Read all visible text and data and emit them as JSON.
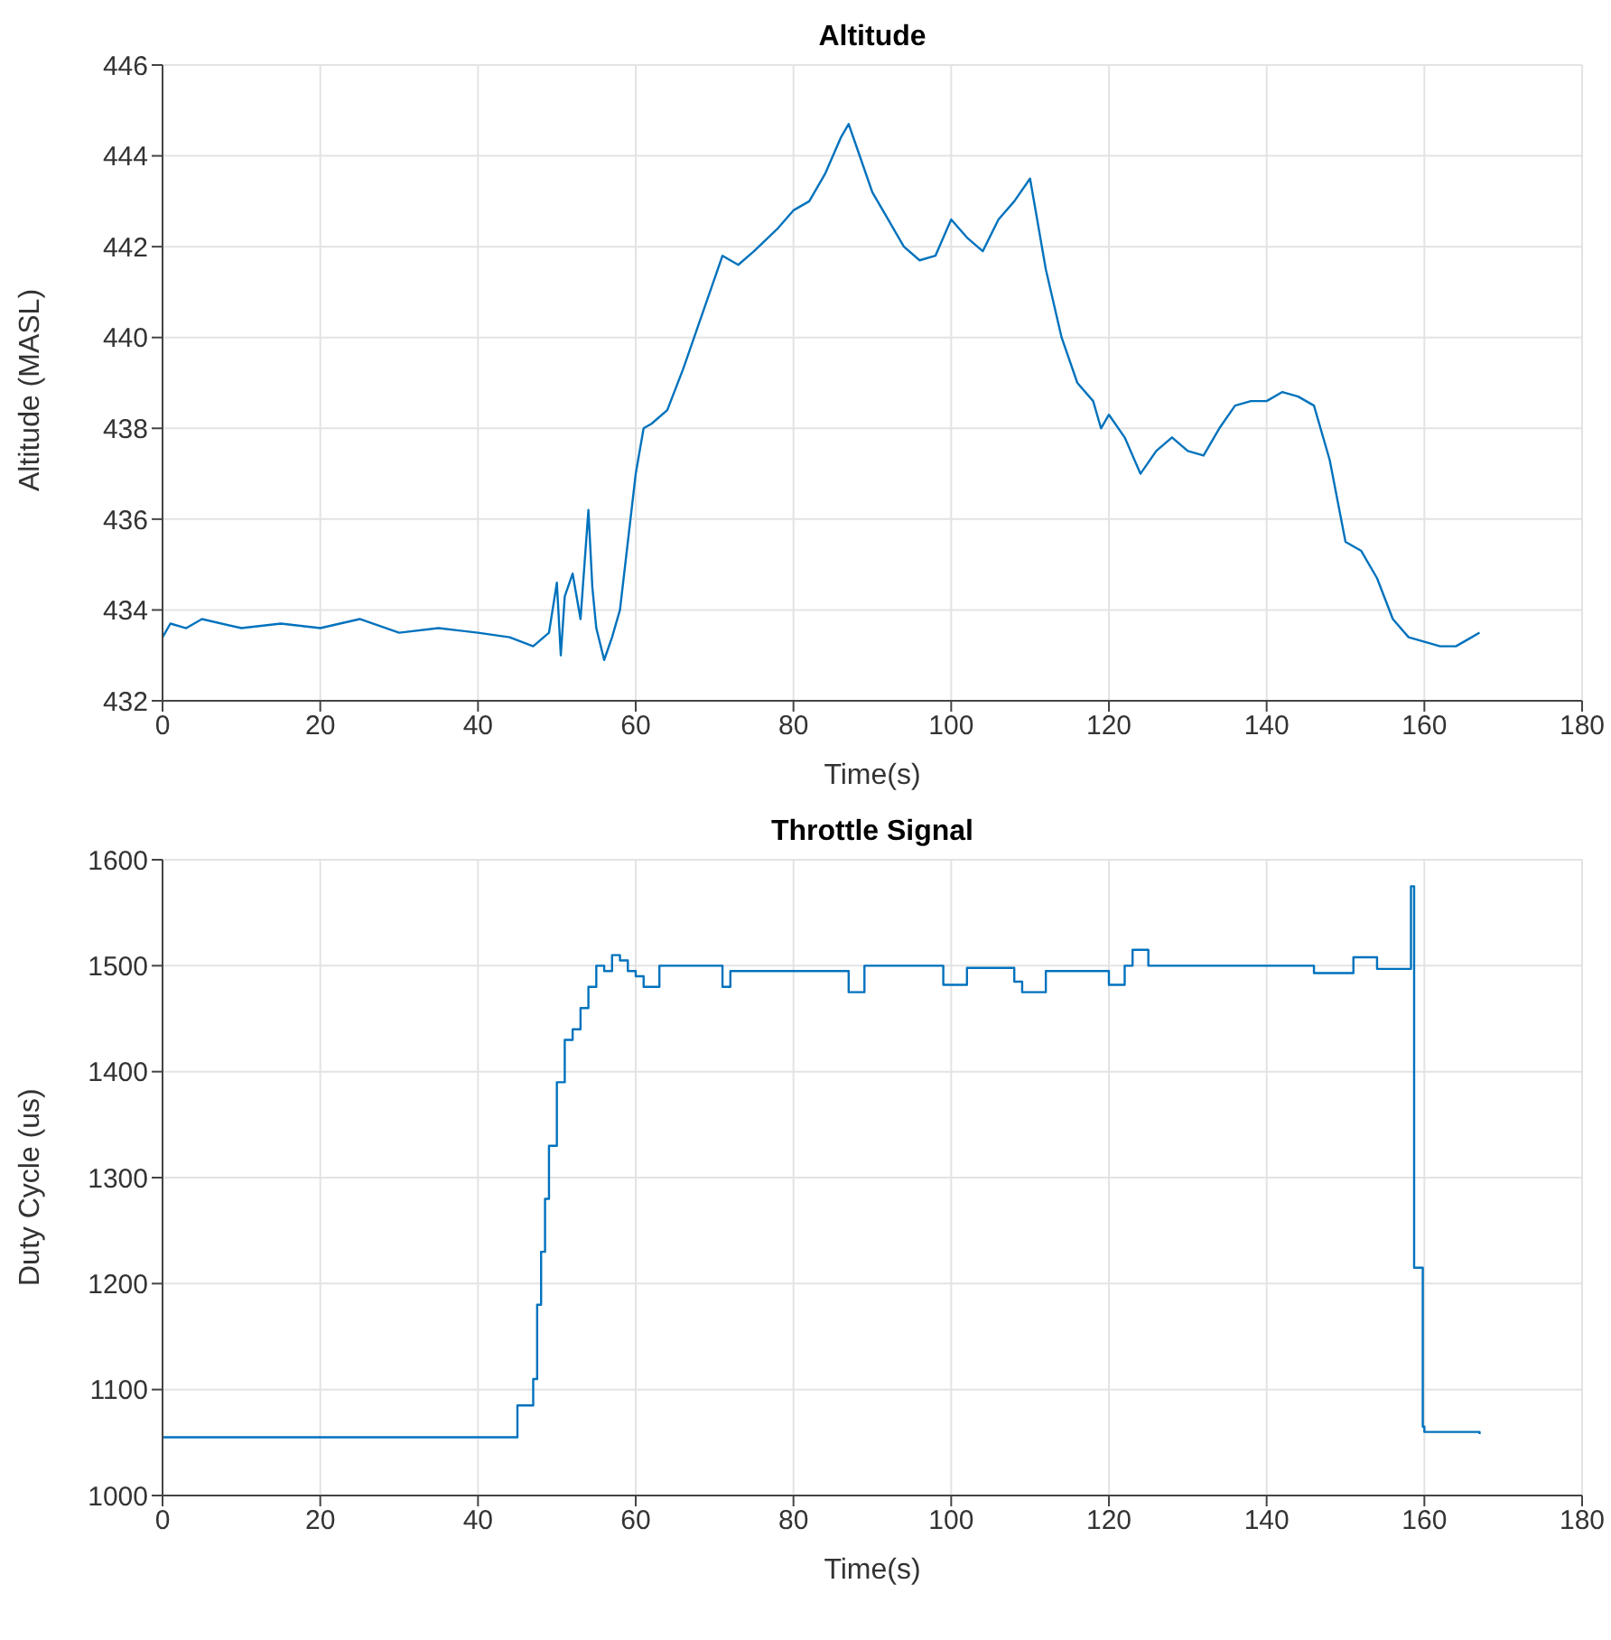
{
  "chart_data": [
    {
      "type": "line",
      "title": "Altitude",
      "xlabel": "Time(s)",
      "ylabel": "Altitude (MASL)",
      "color": "#0072bd",
      "grid": true,
      "xlim": [
        0,
        180
      ],
      "xticks": [
        0,
        20,
        40,
        60,
        80,
        100,
        120,
        140,
        160,
        180
      ],
      "ylim": [
        432,
        446
      ],
      "yticks": [
        432,
        434,
        436,
        438,
        440,
        442,
        444,
        446
      ],
      "x": [
        0,
        1,
        3,
        5,
        10,
        15,
        20,
        25,
        30,
        35,
        40,
        44,
        47,
        49,
        50,
        50.5,
        51,
        52,
        53,
        54,
        54.5,
        55,
        56,
        57,
        58,
        59,
        60,
        61,
        62,
        64,
        66,
        68,
        70,
        71,
        73,
        75,
        78,
        80,
        82,
        84,
        86,
        87,
        88,
        90,
        92,
        94,
        96,
        98,
        100,
        102,
        104,
        106,
        108,
        110,
        111,
        112,
        114,
        116,
        118,
        119,
        120,
        122,
        124,
        126,
        128,
        130,
        132,
        134,
        136,
        138,
        140,
        142,
        144,
        146,
        148,
        149,
        150,
        152,
        154,
        156,
        158,
        160,
        162,
        164,
        166,
        167
      ],
      "values": [
        433.4,
        433.7,
        433.6,
        433.8,
        433.6,
        433.7,
        433.6,
        433.8,
        433.5,
        433.6,
        433.5,
        433.4,
        433.2,
        433.5,
        434.6,
        433,
        434.3,
        434.8,
        433.8,
        436.2,
        434.5,
        433.6,
        432.9,
        433.4,
        434,
        435.5,
        437,
        438,
        438.1,
        438.4,
        439.3,
        440.3,
        441.3,
        441.8,
        441.6,
        441.9,
        442.4,
        442.8,
        443,
        443.6,
        444.4,
        444.7,
        444.2,
        443.2,
        442.6,
        442,
        441.7,
        441.8,
        442.6,
        442.2,
        441.9,
        442.6,
        443,
        443.5,
        442.5,
        441.5,
        440,
        439,
        438.6,
        438,
        438.3,
        437.8,
        437,
        437.5,
        437.8,
        437.5,
        437.4,
        438,
        438.5,
        438.6,
        438.6,
        438.8,
        438.7,
        438.5,
        437.3,
        436.4,
        435.5,
        435.3,
        434.7,
        433.8,
        433.4,
        433.3,
        433.2,
        433.2,
        433.4,
        433.5
      ]
    },
    {
      "type": "step",
      "title": "Throttle Signal",
      "xlabel": "Time(s)",
      "ylabel": "Duty Cycle (us)",
      "color": "#0072bd",
      "grid": true,
      "xlim": [
        0,
        180
      ],
      "xticks": [
        0,
        20,
        40,
        60,
        80,
        100,
        120,
        140,
        160,
        180
      ],
      "ylim": [
        1000,
        1600
      ],
      "yticks": [
        1000,
        1100,
        1200,
        1300,
        1400,
        1500,
        1600
      ],
      "x": [
        0,
        44,
        45,
        47,
        47.5,
        48,
        48.5,
        49,
        50,
        51,
        52,
        53,
        54,
        55,
        56,
        57,
        58,
        59,
        60,
        61,
        63,
        71,
        72,
        87,
        89,
        99,
        102,
        108,
        109,
        112,
        120,
        122,
        123,
        125,
        146,
        151,
        154,
        158,
        158.3,
        158.7,
        159.8,
        160,
        167
      ],
      "values": [
        1055,
        1055,
        1085,
        1110,
        1180,
        1230,
        1280,
        1330,
        1390,
        1430,
        1440,
        1460,
        1480,
        1500,
        1495,
        1510,
        1505,
        1495,
        1490,
        1480,
        1500,
        1480,
        1495,
        1475,
        1500,
        1482,
        1498,
        1485,
        1475,
        1495,
        1482,
        1500,
        1515,
        1500,
        1493,
        1508,
        1497,
        1497,
        1575,
        1215,
        1065,
        1060,
        1058
      ]
    }
  ]
}
